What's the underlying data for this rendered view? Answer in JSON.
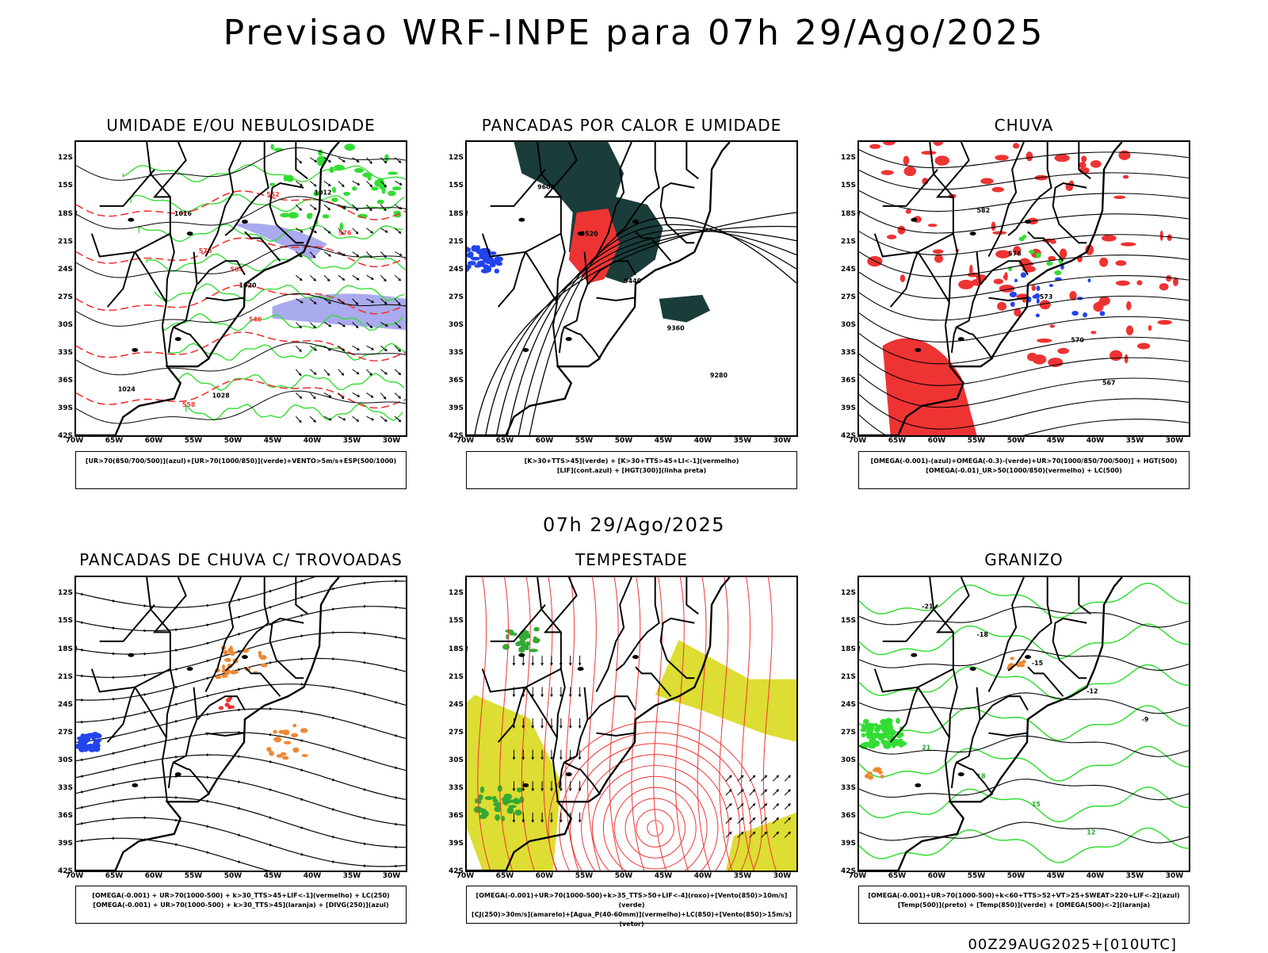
{
  "header": {
    "title": "Previsao WRF-INPE  para 07h 29/Ago/2025"
  },
  "subheader": {
    "title": "07h 29/Ago/2025"
  },
  "footer": {
    "run": "00Z29AUG2025+[010UTC]"
  },
  "axes": {
    "lat_labels": [
      "12S",
      "15S",
      "18S",
      "21S",
      "24S",
      "27S",
      "30S",
      "33S",
      "36S",
      "39S",
      "42S"
    ],
    "lon_labels": [
      "70W",
      "65W",
      "60W",
      "55W",
      "50W",
      "45W",
      "40W",
      "35W",
      "30W"
    ]
  },
  "colors": {
    "green": "#33dd33",
    "red": "#ee3333",
    "blue": "#2244ee",
    "lavender": "#aaaaee",
    "darkgreen": "#1a3d3a",
    "yellow": "#dddd33",
    "orange": "#ee8833",
    "contour": "#000000"
  },
  "panels": [
    {
      "title": "UMIDADE E/OU NEBULOSIDADE",
      "legend": [
        "[UR>70(850/700/500)](azul)+[UR>70(1000/850)](verde)+VENTO>5m/s+ESP(500/1000)"
      ],
      "contour_labels": [
        "1020",
        "1016",
        "1012",
        "1024",
        "1028",
        "570",
        "576",
        "564",
        "558",
        "552",
        "546"
      ]
    },
    {
      "title": "PANCADAS POR CALOR E UMIDADE",
      "legend": [
        "[K>30+TTS>45](verde) + [K>30+TTS>45+LI<-1](vermelho)",
        "[LIF](cont.azul) + [HGT(300)](linha preta)"
      ],
      "contour_labels": [
        "9600",
        "9520",
        "9440",
        "9360",
        "9280"
      ]
    },
    {
      "title": "CHUVA",
      "legend": [
        "[OMEGA(-0.001)-(azul)+OMEGA(-0.3)-(verde)+UR>70(1000/850/700/500)] + HGT(500)",
        "[OMEGA(-0.01)_UR>50(1000/850)(vermelho) + LC(500)"
      ],
      "contour_labels": [
        "582",
        "576",
        "573",
        "570",
        "567"
      ]
    },
    {
      "title": "PANCADAS DE CHUVA C/ TROVOADAS",
      "legend": [
        "[OMEGA(-0.001) + UR>70(1000-500) + k>30_TTS>45+LIF<-1](vermelho) + LC(250)",
        "[OMEGA(-0.001) + UR>70(1000-500) + k>30_TTS>45](laranja) + [DIVG(250)](azul)"
      ],
      "contour_labels": []
    },
    {
      "title": "TEMPESTADE",
      "legend": [
        "[OMEGA(-0.001)+UR>70(1000-500)+k>35_TTS>50+LIF<-4](roxo)+[Vento(850)>10m/s](verde)",
        "[CJ(250)>30m/s](amarelo)+[Agua_P(40-60mm)](vermelho)+LC(850)+[Vento(850)>15m/s](vetor)"
      ],
      "contour_labels": []
    },
    {
      "title": "GRANIZO",
      "legend": [
        "[OMEGA(-0.001)+UR>70(1000-500)+k<60+TTS>52+VT>25+SWEAT>220+LIF<-2](azul)",
        "[Temp(500)](preto) + [Temp(850)](verde) + [OMEGA(500)<-2](laranja)"
      ],
      "contour_labels": [
        "-21",
        "-18",
        "-15",
        "-12",
        "-9",
        "21",
        "18",
        "15",
        "12"
      ]
    }
  ]
}
